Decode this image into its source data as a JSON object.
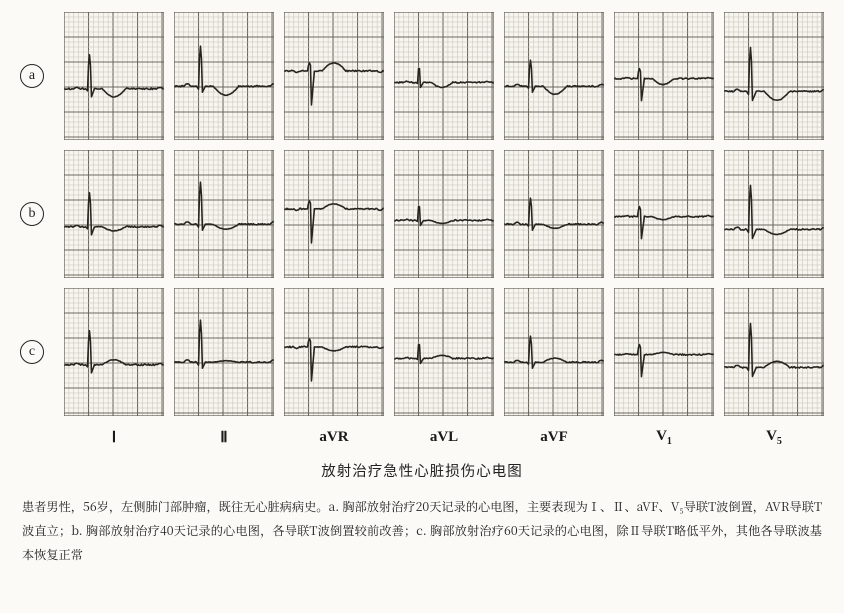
{
  "figure": {
    "background_color": "#fbfaf6",
    "panel_bg": "#f6f5f0",
    "grid": {
      "minor_color": "#bdb8ad",
      "major_color": "#5e5a50",
      "minor_step": 5,
      "major_step": 25,
      "minor_width": 0.5,
      "major_width": 1.1
    },
    "trace": {
      "color": "#26241f",
      "width": 1.6,
      "baseline_jitter": 1.4,
      "noise_seed": 12987
    },
    "row_labels": [
      "a",
      "b",
      "c"
    ],
    "col_labels": [
      "I",
      "II",
      "aVR",
      "aVL",
      "aVF",
      "V1",
      "V5"
    ],
    "col_labels_html": [
      "Ⅰ",
      "Ⅱ",
      "aVR",
      "aVL",
      "aVF",
      "V<sub>1</sub>",
      "V<sub>5</sub>"
    ],
    "rows": [
      {
        "row": "a",
        "panels": [
          {
            "lead": "I",
            "morph": {
              "baseline": 0.6,
              "p": {
                "amp": 1.5,
                "dur": 6
              },
              "qrs": {
                "q": -2,
                "r": 34,
                "s": -8,
                "dur": 9
              },
              "t": {
                "amp": -8,
                "dur": 24
              }
            }
          },
          {
            "lead": "II",
            "morph": {
              "baseline": 0.58,
              "p": {
                "amp": 2.5,
                "dur": 7
              },
              "qrs": {
                "q": -3,
                "r": 40,
                "s": -6,
                "dur": 9
              },
              "t": {
                "amp": -9,
                "dur": 26
              }
            }
          },
          {
            "lead": "aVR",
            "morph": {
              "baseline": 0.46,
              "p": {
                "amp": -1.5,
                "dur": 6
              },
              "qrs": {
                "q": 0,
                "r": 8,
                "s": -34,
                "dur": 9
              },
              "t": {
                "amp": 8,
                "dur": 24
              }
            }
          },
          {
            "lead": "aVL",
            "morph": {
              "baseline": 0.55,
              "p": {
                "amp": 1,
                "dur": 6
              },
              "qrs": {
                "q": -1,
                "r": 16,
                "s": -5,
                "dur": 8
              },
              "t": {
                "amp": -5,
                "dur": 22
              }
            }
          },
          {
            "lead": "aVF",
            "morph": {
              "baseline": 0.58,
              "p": {
                "amp": 2,
                "dur": 7
              },
              "qrs": {
                "q": -2,
                "r": 26,
                "s": -6,
                "dur": 9
              },
              "t": {
                "amp": -8,
                "dur": 24
              }
            }
          },
          {
            "lead": "V1",
            "morph": {
              "baseline": 0.52,
              "p": {
                "amp": 1,
                "dur": 6
              },
              "qrs": {
                "q": 0,
                "r": 10,
                "s": -22,
                "dur": 9
              },
              "t": {
                "amp": -6,
                "dur": 22
              }
            }
          },
          {
            "lead": "V5",
            "morph": {
              "baseline": 0.62,
              "p": {
                "amp": 2,
                "dur": 7
              },
              "qrs": {
                "q": -3,
                "r": 44,
                "s": -9,
                "dur": 10
              },
              "t": {
                "amp": -9,
                "dur": 26
              }
            }
          }
        ]
      },
      {
        "row": "b",
        "panels": [
          {
            "lead": "I",
            "morph": {
              "baseline": 0.6,
              "p": {
                "amp": 1.5,
                "dur": 6
              },
              "qrs": {
                "q": -2,
                "r": 34,
                "s": -8,
                "dur": 9
              },
              "t": {
                "amp": -4,
                "dur": 24
              }
            }
          },
          {
            "lead": "II",
            "morph": {
              "baseline": 0.58,
              "p": {
                "amp": 2.5,
                "dur": 7
              },
              "qrs": {
                "q": -3,
                "r": 42,
                "s": -6,
                "dur": 9
              },
              "t": {
                "amp": -5,
                "dur": 26
              }
            }
          },
          {
            "lead": "aVR",
            "morph": {
              "baseline": 0.46,
              "p": {
                "amp": -1.5,
                "dur": 6
              },
              "qrs": {
                "q": 0,
                "r": 8,
                "s": -34,
                "dur": 9
              },
              "t": {
                "amp": 5,
                "dur": 24
              }
            }
          },
          {
            "lead": "aVL",
            "morph": {
              "baseline": 0.55,
              "p": {
                "amp": 1,
                "dur": 6
              },
              "qrs": {
                "q": -1,
                "r": 16,
                "s": -5,
                "dur": 8
              },
              "t": {
                "amp": -3,
                "dur": 22
              }
            }
          },
          {
            "lead": "aVF",
            "morph": {
              "baseline": 0.58,
              "p": {
                "amp": 2,
                "dur": 7
              },
              "qrs": {
                "q": -2,
                "r": 26,
                "s": -6,
                "dur": 9
              },
              "t": {
                "amp": -4,
                "dur": 24
              }
            }
          },
          {
            "lead": "V1",
            "morph": {
              "baseline": 0.52,
              "p": {
                "amp": 1,
                "dur": 6
              },
              "qrs": {
                "q": 0,
                "r": 10,
                "s": -22,
                "dur": 9
              },
              "t": {
                "amp": -3,
                "dur": 22
              }
            }
          },
          {
            "lead": "V5",
            "morph": {
              "baseline": 0.62,
              "p": {
                "amp": 2,
                "dur": 7
              },
              "qrs": {
                "q": -3,
                "r": 44,
                "s": -9,
                "dur": 10
              },
              "t": {
                "amp": -5,
                "dur": 26
              }
            }
          }
        ]
      },
      {
        "row": "c",
        "panels": [
          {
            "lead": "I",
            "morph": {
              "baseline": 0.6,
              "p": {
                "amp": 1.5,
                "dur": 6
              },
              "qrs": {
                "q": -2,
                "r": 34,
                "s": -8,
                "dur": 9
              },
              "t": {
                "amp": 5,
                "dur": 24
              }
            }
          },
          {
            "lead": "II",
            "morph": {
              "baseline": 0.58,
              "p": {
                "amp": 2.5,
                "dur": 7
              },
              "qrs": {
                "q": -3,
                "r": 42,
                "s": -6,
                "dur": 9
              },
              "t": {
                "amp": 1.5,
                "dur": 26
              }
            }
          },
          {
            "lead": "aVR",
            "morph": {
              "baseline": 0.46,
              "p": {
                "amp": -1.5,
                "dur": 6
              },
              "qrs": {
                "q": 0,
                "r": 8,
                "s": -34,
                "dur": 9
              },
              "t": {
                "amp": -4,
                "dur": 24
              }
            }
          },
          {
            "lead": "aVL",
            "morph": {
              "baseline": 0.55,
              "p": {
                "amp": 1,
                "dur": 6
              },
              "qrs": {
                "q": -1,
                "r": 16,
                "s": -5,
                "dur": 8
              },
              "t": {
                "amp": 3,
                "dur": 22
              }
            }
          },
          {
            "lead": "aVF",
            "morph": {
              "baseline": 0.58,
              "p": {
                "amp": 2,
                "dur": 7
              },
              "qrs": {
                "q": -2,
                "r": 26,
                "s": -6,
                "dur": 9
              },
              "t": {
                "amp": 4,
                "dur": 24
              }
            }
          },
          {
            "lead": "V1",
            "morph": {
              "baseline": 0.52,
              "p": {
                "amp": 1,
                "dur": 6
              },
              "qrs": {
                "q": 0,
                "r": 10,
                "s": -22,
                "dur": 9
              },
              "t": {
                "amp": 2,
                "dur": 22
              }
            }
          },
          {
            "lead": "V5",
            "morph": {
              "baseline": 0.62,
              "p": {
                "amp": 2,
                "dur": 7
              },
              "qrs": {
                "q": -3,
                "r": 44,
                "s": -9,
                "dur": 10
              },
              "t": {
                "amp": 6,
                "dur": 26
              }
            }
          }
        ]
      }
    ]
  },
  "title": "放射治疗急性心脏损伤心电图",
  "caption": "患者男性，56岁，左侧肺门部肿瘤，既往无心脏病病史。a. 胸部放射治疗20天记录的心电图，主要表现为Ⅰ、Ⅱ、aVF、V₅导联T波倒置，AVR导联T波直立；b. 胸部放射治疗40天记录的心电图，各导联T波倒置较前改善；c. 胸部放射治疗60天记录的心电图，除Ⅱ导联T略低平外，其他各导联波基本恢复正常"
}
